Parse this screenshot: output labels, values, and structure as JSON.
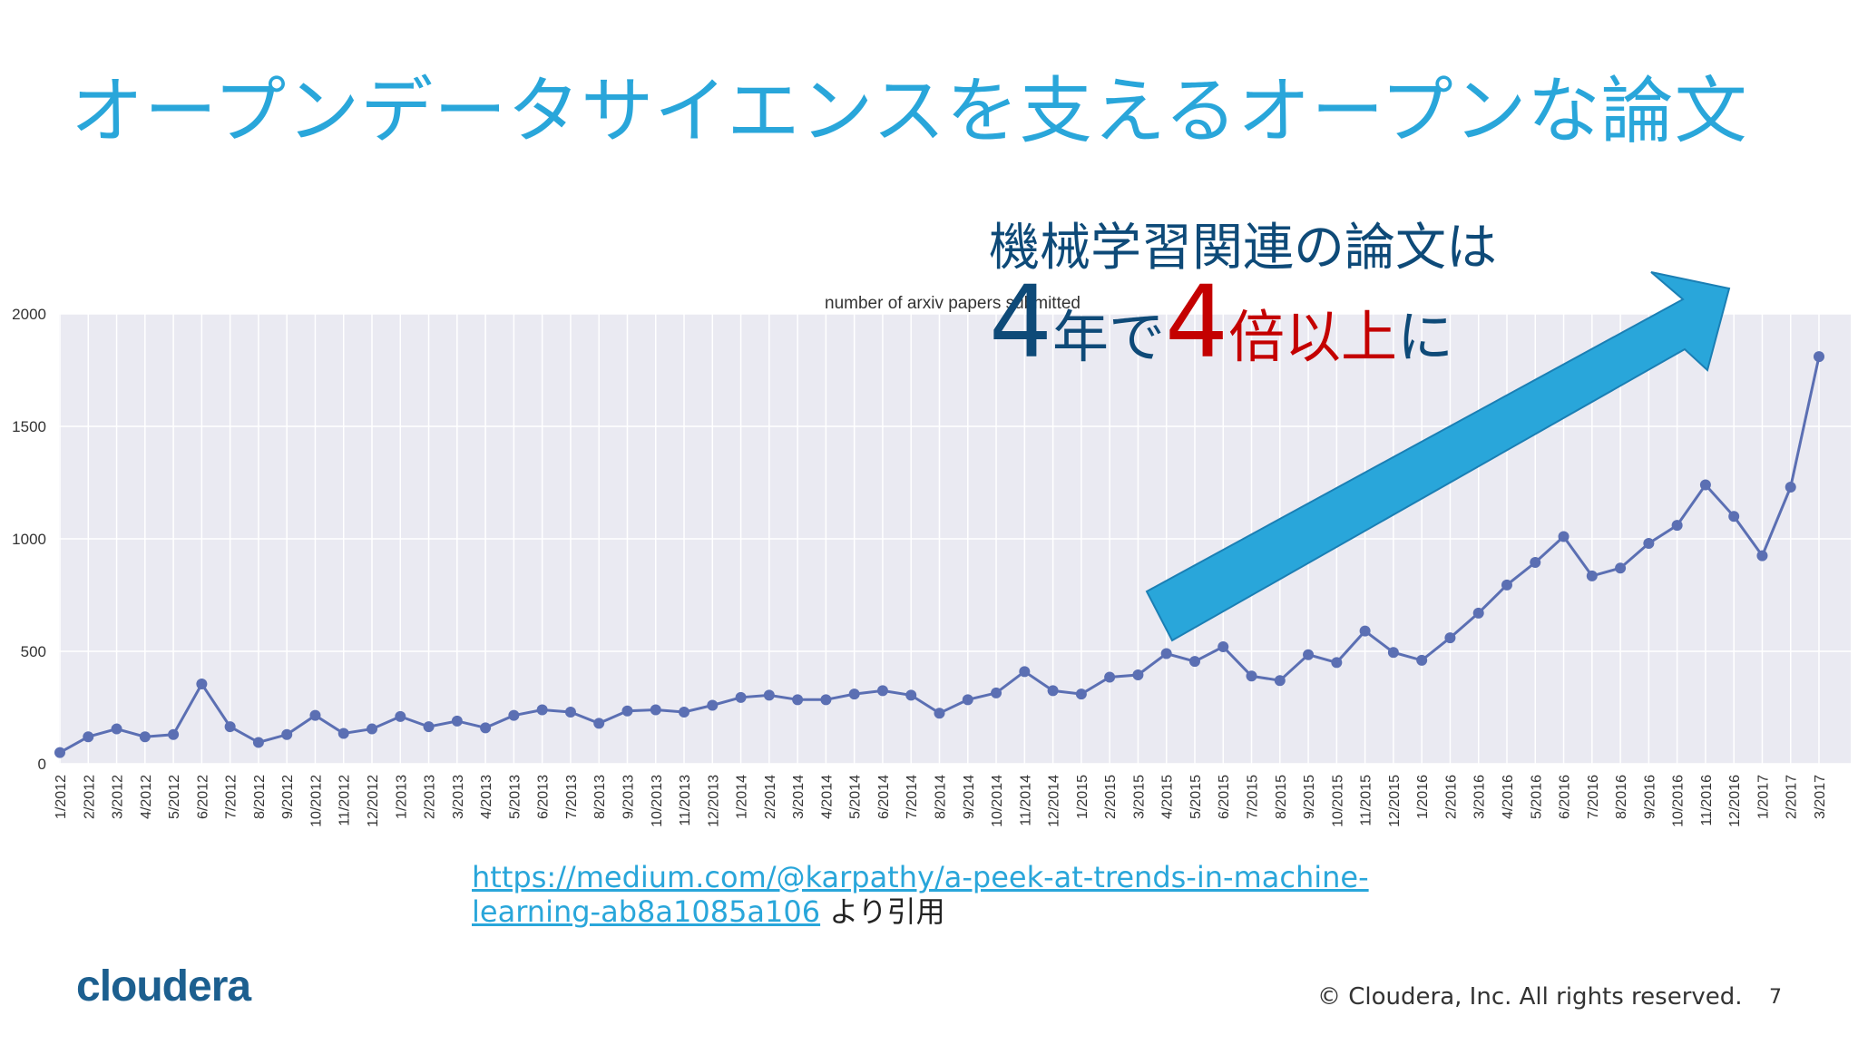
{
  "slide": {
    "title": "オープンデータサイエンスを支えるオープンな論文",
    "callout_line1": "機械学習関連の論文は",
    "callout_line2": {
      "part1": "4",
      "part2": "年で",
      "part3": "4",
      "part4": "倍以上",
      "part5": "に"
    },
    "source_url_line1": "https://medium.com/@karpathy/a-peek-at-trends-in-machine-",
    "source_url_line2": "learning-ab8a1085a106",
    "source_suffix": " より引用",
    "logo_text": "cloudera",
    "copyright": "© Cloudera, Inc. All rights reserved.",
    "page_number": "7",
    "colors": {
      "title": "#29a6da",
      "callout": "#0e4a78",
      "callout_highlight": "#c40000",
      "arrow": "#29a6da",
      "series": "#5b6fb3",
      "plot_bg": "#eaeaf2"
    }
  },
  "chart_data": {
    "type": "line",
    "title": "number of arxiv papers submitted",
    "xlabel": "",
    "ylabel": "",
    "ylim": [
      0,
      2000
    ],
    "yticks": [
      0,
      500,
      1000,
      1500,
      2000
    ],
    "grid": true,
    "categories": [
      "1/2012",
      "2/2012",
      "3/2012",
      "4/2012",
      "5/2012",
      "6/2012",
      "7/2012",
      "8/2012",
      "9/2012",
      "10/2012",
      "11/2012",
      "12/2012",
      "1/2013",
      "2/2013",
      "3/2013",
      "4/2013",
      "5/2013",
      "6/2013",
      "7/2013",
      "8/2013",
      "9/2013",
      "10/2013",
      "11/2013",
      "12/2013",
      "1/2014",
      "2/2014",
      "3/2014",
      "4/2014",
      "5/2014",
      "6/2014",
      "7/2014",
      "8/2014",
      "9/2014",
      "10/2014",
      "11/2014",
      "12/2014",
      "1/2015",
      "2/2015",
      "3/2015",
      "4/2015",
      "5/2015",
      "6/2015",
      "7/2015",
      "8/2015",
      "9/2015",
      "10/2015",
      "11/2015",
      "12/2015",
      "1/2016",
      "2/2016",
      "3/2016",
      "4/2016",
      "5/2016",
      "6/2016",
      "7/2016",
      "8/2016",
      "9/2016",
      "10/2016",
      "11/2016",
      "12/2016",
      "1/2017",
      "2/2017",
      "3/2017"
    ],
    "series": [
      {
        "values": [
          50,
          120,
          155,
          120,
          130,
          355,
          165,
          95,
          130,
          215,
          135,
          155,
          210,
          165,
          190,
          160,
          215,
          240,
          230,
          180,
          235,
          240,
          230,
          260,
          295,
          305,
          285,
          285,
          310,
          325,
          305,
          225,
          285,
          315,
          410,
          325,
          310,
          385,
          395,
          490,
          455,
          520,
          390,
          370,
          485,
          450,
          590,
          495,
          460,
          560,
          670,
          795,
          895,
          1010,
          835,
          870,
          980,
          1060,
          1240,
          1100,
          925,
          1230,
          1810
        ]
      }
    ]
  }
}
